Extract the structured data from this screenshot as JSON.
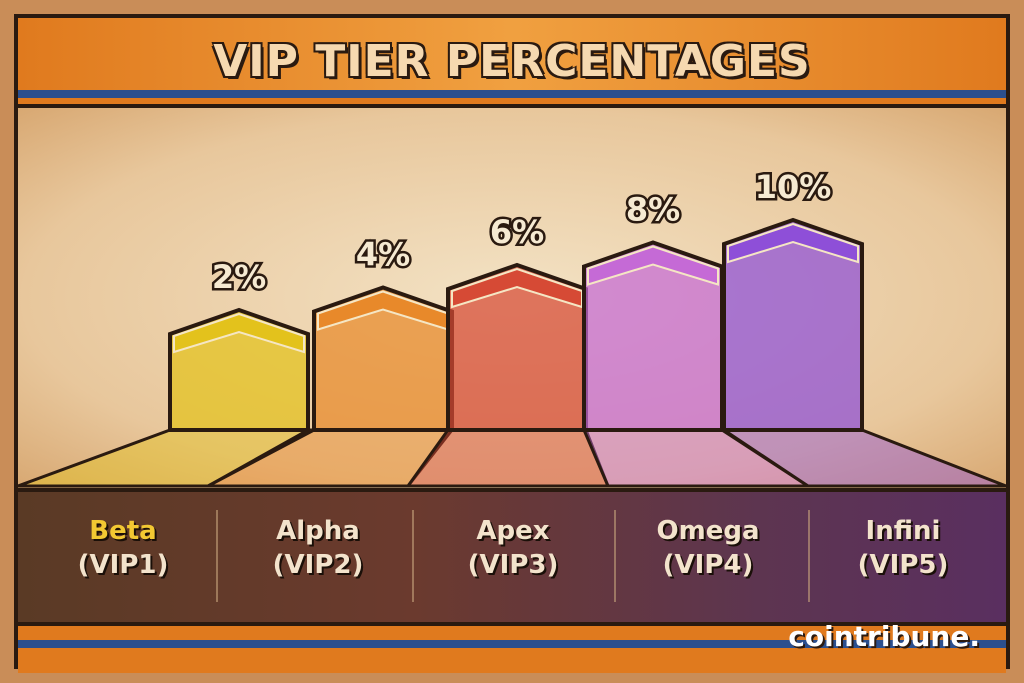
{
  "chart_data": {
    "type": "bar",
    "title": "VIP TIER PERCENTAGES",
    "categories": [
      "Beta (VIP1)",
      "Alpha (VIP2)",
      "Apex (VIP3)",
      "Omega (VIP4)",
      "Infini (VIP5)"
    ],
    "category_names": [
      "Beta",
      "Alpha",
      "Apex",
      "Omega",
      "Infini"
    ],
    "category_tiers": [
      "(VIP1)",
      "(VIP2)",
      "(VIP3)",
      "(VIP4)",
      "(VIP5)"
    ],
    "values": [
      2,
      4,
      6,
      8,
      10
    ],
    "value_labels": [
      "2%",
      "4%",
      "6%",
      "8%",
      "10%"
    ],
    "unit": "%",
    "colors": [
      "#e3c21c",
      "#e8892a",
      "#d64a35",
      "#c56ad6",
      "#8e4fd8"
    ],
    "grid": false,
    "xlabel": "",
    "ylabel": ""
  },
  "brand": "cointribune."
}
